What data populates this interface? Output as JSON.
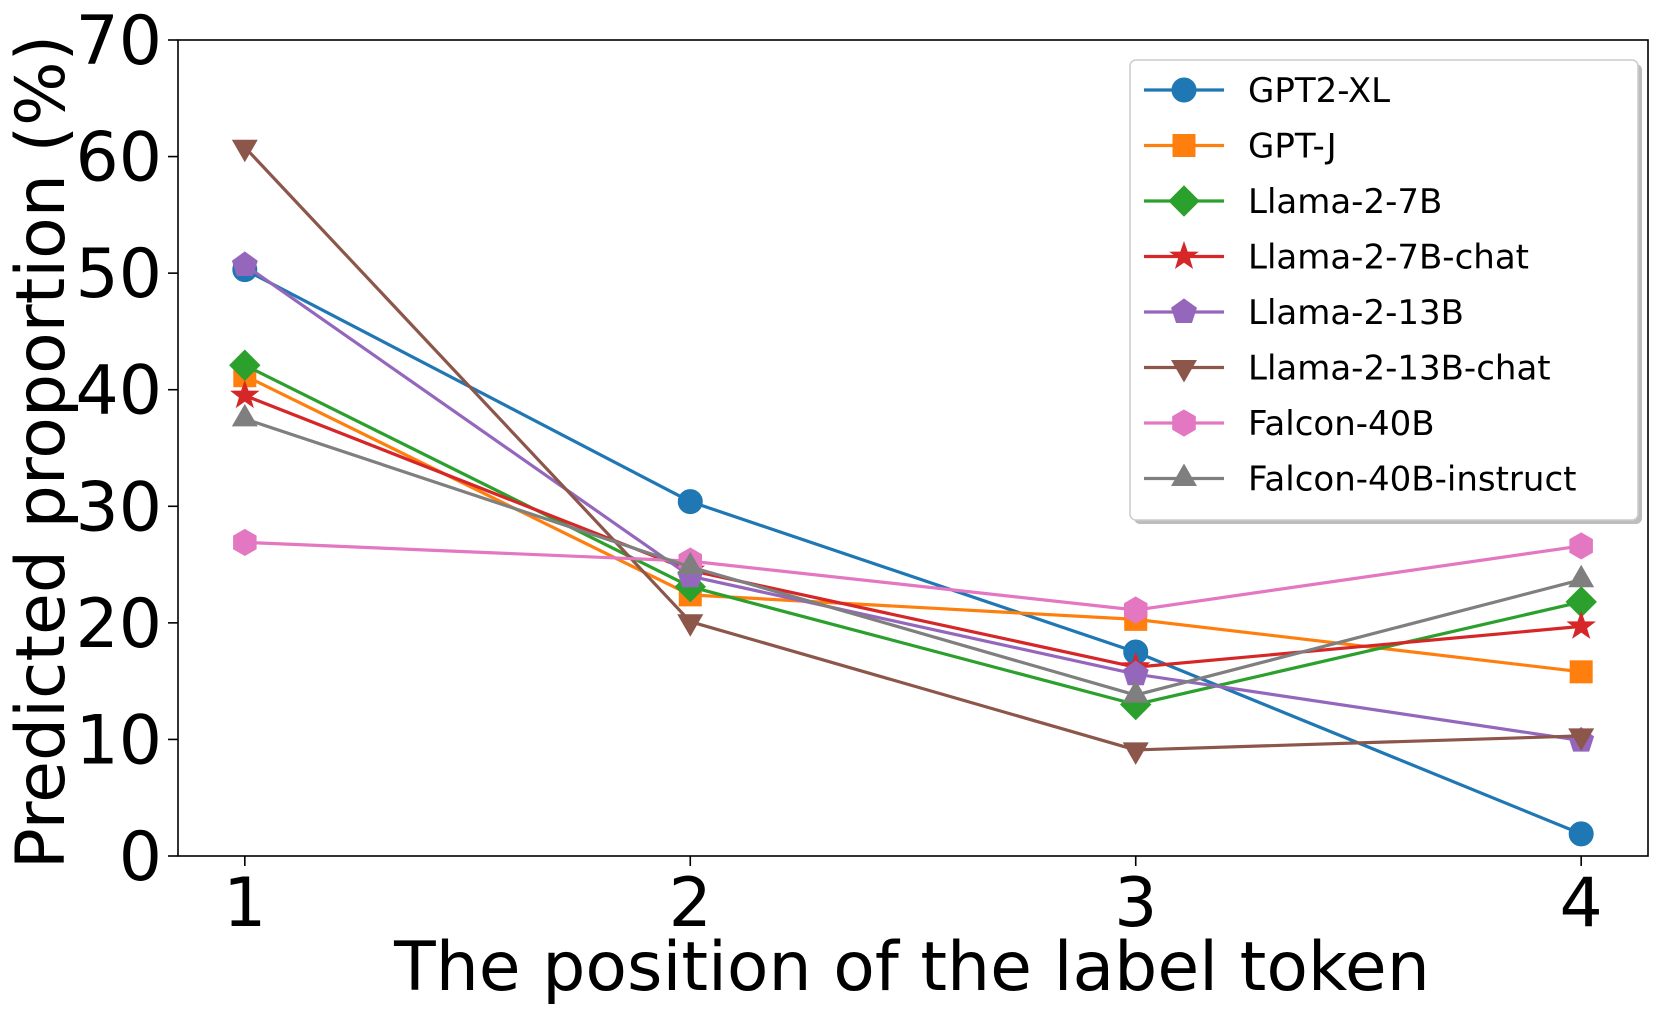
{
  "chart_data": {
    "type": "line",
    "title": "",
    "xlabel": "The position of the label token",
    "ylabel": "Predicted proportion (%)",
    "x": [
      1,
      2,
      3,
      4
    ],
    "xticks": [
      "1",
      "2",
      "3",
      "4"
    ],
    "xlim": [
      0.85,
      4.15
    ],
    "ylim": [
      0,
      70
    ],
    "yticks": [
      "0",
      "10",
      "20",
      "30",
      "40",
      "50",
      "60",
      "70"
    ],
    "grid": false,
    "legend_position": "top-right",
    "series": [
      {
        "name": "GPT2-XL",
        "color": "#1f77b4",
        "marker": "circle",
        "values": [
          50.3,
          30.4,
          17.5,
          1.9
        ]
      },
      {
        "name": "GPT-J",
        "color": "#ff7f0e",
        "marker": "square",
        "values": [
          41.2,
          22.4,
          20.3,
          15.8
        ]
      },
      {
        "name": "Llama-2-7B",
        "color": "#2ca02c",
        "marker": "diamond",
        "values": [
          42.1,
          23.1,
          13.0,
          21.8
        ]
      },
      {
        "name": "Llama-2-7B-chat",
        "color": "#d62728",
        "marker": "star",
        "values": [
          39.5,
          24.5,
          16.2,
          19.7
        ]
      },
      {
        "name": "Llama-2-13B",
        "color": "#9467bd",
        "marker": "pentagon",
        "values": [
          50.7,
          24.0,
          15.6,
          9.9
        ]
      },
      {
        "name": "Llama-2-13B-chat",
        "color": "#8c564b",
        "marker": "triangle-down",
        "values": [
          60.8,
          20.1,
          9.1,
          10.3
        ]
      },
      {
        "name": "Falcon-40B",
        "color": "#e377c2",
        "marker": "hexagon",
        "values": [
          26.9,
          25.3,
          21.1,
          26.6
        ]
      },
      {
        "name": "Falcon-40B-instruct",
        "color": "#7f7f7f",
        "marker": "triangle-up",
        "values": [
          37.5,
          24.8,
          13.8,
          23.7
        ]
      }
    ]
  }
}
